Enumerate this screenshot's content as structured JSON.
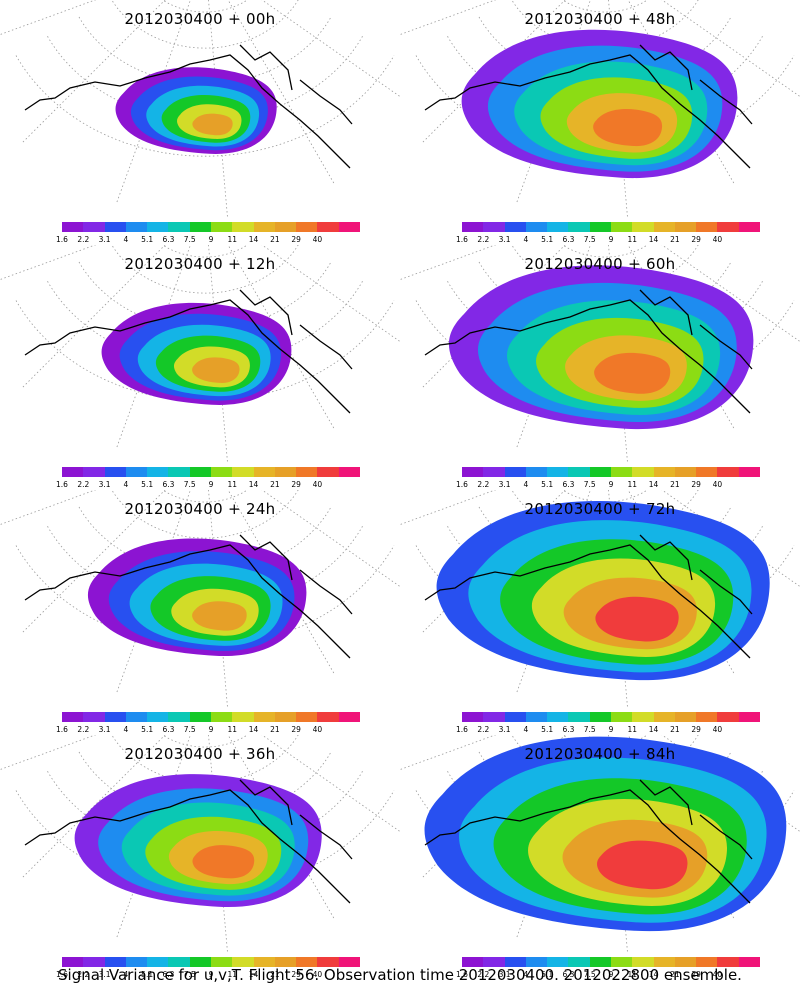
{
  "panels": [
    {
      "title": "2012030400 + 00h"
    },
    {
      "title": "2012030400 + 48h"
    },
    {
      "title": "2012030400 + 12h"
    },
    {
      "title": "2012030400 + 60h"
    },
    {
      "title": "2012030400 + 24h"
    },
    {
      "title": "2012030400 + 72h"
    },
    {
      "title": "2012030400 + 36h"
    },
    {
      "title": "2012030400 + 84h"
    }
  ],
  "colorbar": {
    "colors": [
      "#8c14d2",
      "#8228e6",
      "#2850f0",
      "#1e8cf0",
      "#14b4e6",
      "#0ac8b4",
      "#14c828",
      "#8cdc14",
      "#d2dc28",
      "#e6b428",
      "#e6a028",
      "#f07828",
      "#f03c3c",
      "#f01478"
    ],
    "labels": [
      "1.6",
      "2.2",
      "3.1",
      "4",
      "5.1",
      "6.3",
      "7.5",
      "9",
      "11",
      "14",
      "21",
      "29",
      "40"
    ]
  },
  "caption": "Signal Variance for u,v,T. Flight 56. Observation time 2012030400. 2012022800 ensemble."
}
